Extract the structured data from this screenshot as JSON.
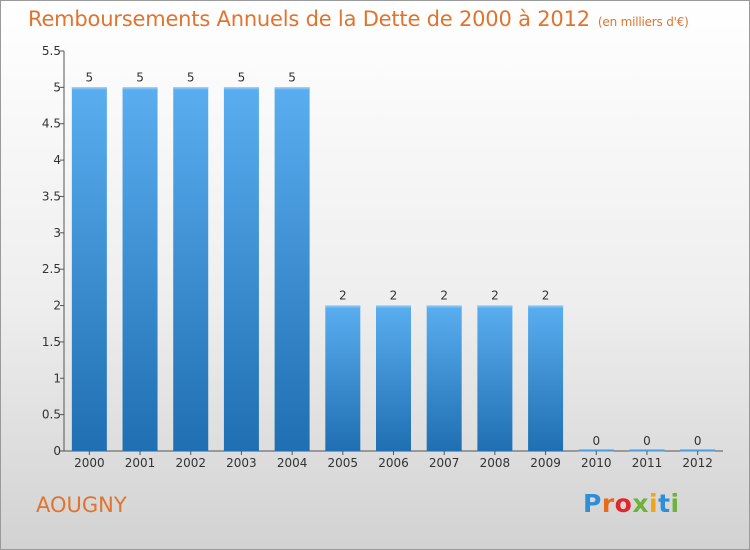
{
  "title": "Remboursements Annuels de la Dette de 2000 à 2012",
  "unit_note": "(en milliers d'€)",
  "commune": "AOUGNY",
  "logo": {
    "text": "Proxiti",
    "letter_colors": [
      "#2d8fd8",
      "#e96a1a",
      "#e3262c",
      "#6bb33a",
      "#f0a419",
      "#2d8fd8",
      "#6bb33a"
    ]
  },
  "colors": {
    "title": "#e0742f",
    "bar_top": "#5aaef0",
    "bar_bottom": "#1f6fb2"
  },
  "chart_data": {
    "type": "bar",
    "title": "Remboursements Annuels de la Dette de 2000 à 2012",
    "categories": [
      "2000",
      "2001",
      "2002",
      "2003",
      "2004",
      "2005",
      "2006",
      "2007",
      "2008",
      "2009",
      "2010",
      "2011",
      "2012"
    ],
    "values": [
      5,
      5,
      5,
      5,
      5,
      2,
      2,
      2,
      2,
      2,
      0,
      0,
      0
    ],
    "value_labels": [
      "5",
      "5",
      "5",
      "5",
      "5",
      "2",
      "2",
      "2",
      "2",
      "2",
      "0",
      "0",
      "0"
    ],
    "ylim": [
      0,
      5.5
    ],
    "yticks": [
      0,
      0.5,
      1,
      1.5,
      2,
      2.5,
      3,
      3.5,
      4,
      4.5,
      5,
      5.5
    ],
    "ytick_labels": [
      "0",
      "0.5",
      "1",
      "1.5",
      "2",
      "2.5",
      "3",
      "3.5",
      "4",
      "4.5",
      "5",
      "5.5"
    ],
    "xlabel": "",
    "ylabel": "",
    "grid": false,
    "legend": "none"
  }
}
